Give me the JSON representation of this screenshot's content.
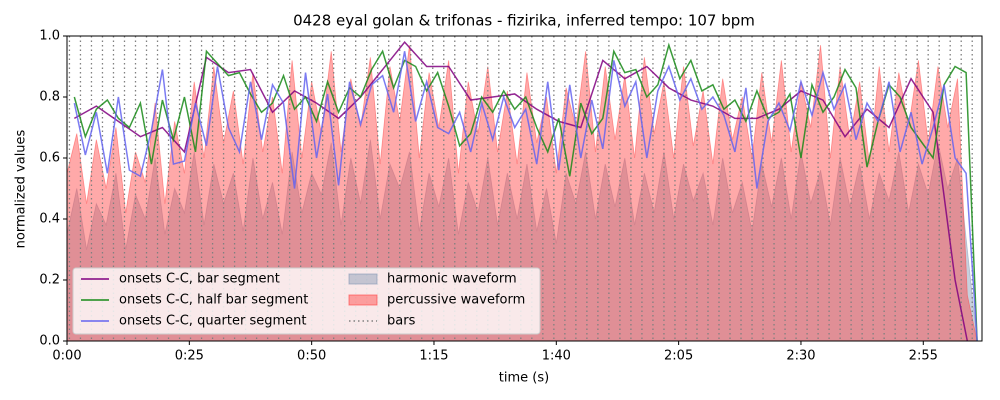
{
  "chart_data": {
    "type": "line",
    "title": "0428 eyal golan & trifonas - fizirika, inferred tempo: 107 bpm",
    "xlabel": "time (s)",
    "ylabel": "normalized values",
    "xlim": [
      0,
      187
    ],
    "ylim": [
      0,
      1
    ],
    "xticks": [
      {
        "value": 0,
        "label": "0:00"
      },
      {
        "value": 25,
        "label": "0:25"
      },
      {
        "value": 50,
        "label": "0:50"
      },
      {
        "value": 75,
        "label": "1:15"
      },
      {
        "value": 100,
        "label": "1:40"
      },
      {
        "value": 125,
        "label": "2:05"
      },
      {
        "value": 150,
        "label": "2:30"
      },
      {
        "value": 175,
        "label": "2:55"
      }
    ],
    "yticks": [
      {
        "value": 0,
        "label": "0.0"
      },
      {
        "value": 0.2,
        "label": "0.2"
      },
      {
        "value": 0.4,
        "label": "0.4"
      },
      {
        "value": 0.6,
        "label": "0.6"
      },
      {
        "value": 0.8,
        "label": "0.8"
      },
      {
        "value": 1,
        "label": "1.0"
      }
    ],
    "legend": "lower left",
    "series": [
      {
        "name": "onsets C-C, bar segment",
        "kind": "line",
        "color": "#800080",
        "x": [
          1.5,
          6,
          10.5,
          15,
          19.5,
          24,
          28.5,
          33,
          37.5,
          42,
          46.5,
          51,
          55.5,
          60,
          64.5,
          69,
          73.5,
          78,
          82.5,
          87,
          91.5,
          96,
          100.5,
          105,
          109.5,
          114,
          118.5,
          123,
          127.5,
          132,
          136.5,
          141,
          145.5,
          150,
          154.5,
          159,
          163.5,
          168,
          172.5,
          177,
          181.5,
          184
        ],
        "values": [
          0.73,
          0.77,
          0.72,
          0.67,
          0.7,
          0.62,
          0.93,
          0.88,
          0.89,
          0.75,
          0.82,
          0.78,
          0.73,
          0.8,
          0.89,
          0.98,
          0.9,
          0.9,
          0.79,
          0.8,
          0.81,
          0.76,
          0.72,
          0.7,
          0.92,
          0.86,
          0.9,
          0.83,
          0.79,
          0.77,
          0.73,
          0.73,
          0.76,
          0.82,
          0.79,
          0.67,
          0.76,
          0.7,
          0.86,
          0.75,
          0.2,
          0
        ]
      },
      {
        "name": "onsets C-C, half bar segment",
        "kind": "line",
        "color": "#178a17",
        "x": [
          1.5,
          3.75,
          6,
          8.25,
          10.5,
          12.75,
          15,
          17.25,
          19.5,
          21.75,
          24,
          26.25,
          28.5,
          30.75,
          33,
          35.25,
          37.5,
          39.75,
          42,
          44.25,
          46.5,
          48.75,
          51,
          53.25,
          55.5,
          57.75,
          60,
          62.25,
          64.5,
          66.75,
          69,
          71.25,
          73.5,
          75.75,
          78,
          80.25,
          82.5,
          84.75,
          87,
          89.25,
          91.5,
          93.75,
          96,
          98.25,
          100.5,
          102.75,
          105,
          107.25,
          109.5,
          111.75,
          114,
          116.25,
          118.5,
          120.75,
          123,
          125.25,
          127.5,
          129.75,
          132,
          134.25,
          136.5,
          138.75,
          141,
          143.25,
          145.5,
          147.75,
          150,
          152.25,
          154.5,
          156.75,
          159,
          161.25,
          163.5,
          165.75,
          168,
          170.25,
          172.5,
          174.75,
          177,
          179.25,
          181.5,
          183.75,
          186
        ],
        "values": [
          0.8,
          0.67,
          0.76,
          0.79,
          0.73,
          0.7,
          0.78,
          0.58,
          0.79,
          0.66,
          0.8,
          0.62,
          0.95,
          0.91,
          0.87,
          0.88,
          0.81,
          0.75,
          0.78,
          0.87,
          0.76,
          0.8,
          0.72,
          0.85,
          0.75,
          0.83,
          0.8,
          0.89,
          0.95,
          0.83,
          0.92,
          0.9,
          0.82,
          0.88,
          0.77,
          0.64,
          0.68,
          0.8,
          0.75,
          0.82,
          0.76,
          0.8,
          0.7,
          0.62,
          0.73,
          0.54,
          0.78,
          0.68,
          0.73,
          0.95,
          0.88,
          0.89,
          0.8,
          0.84,
          0.97,
          0.86,
          0.92,
          0.82,
          0.84,
          0.76,
          0.79,
          0.72,
          0.82,
          0.73,
          0.75,
          0.81,
          0.6,
          0.84,
          0.75,
          0.8,
          0.89,
          0.83,
          0.57,
          0.72,
          0.84,
          0.8,
          0.7,
          0.65,
          0.6,
          0.84,
          0.9,
          0.88,
          0
        ]
      },
      {
        "name": "onsets C-C, quarter segment",
        "kind": "line",
        "color": "#6464f0",
        "x": [
          1.5,
          3.75,
          6,
          8.25,
          10.5,
          12.75,
          15,
          17.25,
          19.5,
          21.75,
          24,
          26.25,
          28.5,
          30.75,
          33,
          35.25,
          37.5,
          39.75,
          42,
          44.25,
          46.5,
          48.75,
          51,
          53.25,
          55.5,
          57.75,
          60,
          62.25,
          64.5,
          66.75,
          69,
          71.25,
          73.5,
          75.75,
          78,
          80.25,
          82.5,
          84.75,
          87,
          89.25,
          91.5,
          93.75,
          96,
          98.25,
          100.5,
          102.75,
          105,
          107.25,
          109.5,
          111.75,
          114,
          116.25,
          118.5,
          120.75,
          123,
          125.25,
          127.5,
          129.75,
          132,
          134.25,
          136.5,
          138.75,
          141,
          143.25,
          145.5,
          147.75,
          150,
          152.25,
          154.5,
          156.75,
          159,
          161.25,
          163.5,
          165.75,
          168,
          170.25,
          172.5,
          174.75,
          177,
          179.25,
          181.5,
          183.75,
          186
        ],
        "values": [
          0.78,
          0.61,
          0.75,
          0.55,
          0.8,
          0.56,
          0.54,
          0.69,
          0.89,
          0.58,
          0.59,
          0.78,
          0.64,
          0.9,
          0.7,
          0.62,
          0.85,
          0.66,
          0.84,
          0.78,
          0.5,
          0.88,
          0.6,
          0.81,
          0.51,
          0.85,
          0.71,
          0.84,
          0.87,
          0.75,
          0.95,
          0.72,
          0.85,
          0.7,
          0.68,
          0.75,
          0.62,
          0.78,
          0.66,
          0.8,
          0.7,
          0.76,
          0.58,
          0.85,
          0.56,
          0.84,
          0.6,
          0.79,
          0.63,
          0.92,
          0.77,
          0.85,
          0.6,
          0.82,
          0.9,
          0.79,
          0.86,
          0.76,
          0.8,
          0.74,
          0.62,
          0.83,
          0.5,
          0.72,
          0.78,
          0.69,
          0.85,
          0.74,
          0.88,
          0.76,
          0.84,
          0.66,
          0.78,
          0.72,
          0.85,
          0.62,
          0.75,
          0.58,
          0.7,
          0.84,
          0.6,
          0.55,
          0
        ]
      },
      {
        "name": "harmonic waveform",
        "kind": "area",
        "color": "#8296b4",
        "x": [
          0,
          2,
          4,
          6,
          8,
          10,
          12,
          14,
          16,
          18,
          20,
          22,
          24,
          26,
          28,
          30,
          32,
          34,
          36,
          38,
          40,
          42,
          44,
          46,
          48,
          50,
          52,
          54,
          56,
          58,
          60,
          62,
          64,
          66,
          68,
          70,
          72,
          74,
          76,
          78,
          80,
          82,
          84,
          86,
          88,
          90,
          92,
          94,
          96,
          98,
          100,
          102,
          104,
          106,
          108,
          110,
          112,
          114,
          116,
          118,
          120,
          122,
          124,
          126,
          128,
          130,
          132,
          134,
          136,
          138,
          140,
          142,
          144,
          146,
          148,
          150,
          152,
          154,
          156,
          158,
          160,
          162,
          164,
          166,
          168,
          170,
          172,
          174,
          176,
          178,
          180,
          182,
          184,
          186
        ],
        "values": [
          0.35,
          0.5,
          0.3,
          0.45,
          0.38,
          0.55,
          0.3,
          0.48,
          0.4,
          0.6,
          0.35,
          0.5,
          0.42,
          0.62,
          0.38,
          0.58,
          0.45,
          0.55,
          0.36,
          0.6,
          0.4,
          0.52,
          0.35,
          0.62,
          0.42,
          0.55,
          0.48,
          0.65,
          0.38,
          0.6,
          0.45,
          0.66,
          0.4,
          0.58,
          0.5,
          0.62,
          0.36,
          0.55,
          0.44,
          0.6,
          0.35,
          0.52,
          0.42,
          0.6,
          0.38,
          0.55,
          0.4,
          0.58,
          0.36,
          0.5,
          0.32,
          0.55,
          0.45,
          0.62,
          0.4,
          0.58,
          0.44,
          0.6,
          0.38,
          0.55,
          0.42,
          0.62,
          0.4,
          0.58,
          0.46,
          0.55,
          0.38,
          0.6,
          0.42,
          0.52,
          0.36,
          0.58,
          0.44,
          0.6,
          0.4,
          0.62,
          0.45,
          0.56,
          0.38,
          0.6,
          0.44,
          0.58,
          0.4,
          0.55,
          0.46,
          0.62,
          0.42,
          0.58,
          0.48,
          0.65,
          0.5,
          0.6,
          0.3,
          0
        ]
      },
      {
        "name": "percussive waveform",
        "kind": "area",
        "color": "#ff4040",
        "x": [
          0,
          2,
          4,
          6,
          8,
          10,
          12,
          14,
          16,
          18,
          20,
          22,
          24,
          26,
          28,
          30,
          32,
          34,
          36,
          38,
          40,
          42,
          44,
          46,
          48,
          50,
          52,
          54,
          56,
          58,
          60,
          62,
          64,
          66,
          68,
          70,
          72,
          74,
          76,
          78,
          80,
          82,
          84,
          86,
          88,
          90,
          92,
          94,
          96,
          98,
          100,
          102,
          104,
          106,
          108,
          110,
          112,
          114,
          116,
          118,
          120,
          122,
          124,
          126,
          128,
          130,
          132,
          134,
          136,
          138,
          140,
          142,
          144,
          146,
          148,
          150,
          152,
          154,
          156,
          158,
          160,
          162,
          164,
          166,
          168,
          170,
          172,
          174,
          176,
          178,
          180,
          182,
          184,
          186
        ],
        "values": [
          0.55,
          0.68,
          0.45,
          0.66,
          0.5,
          0.7,
          0.42,
          0.62,
          0.52,
          0.78,
          0.45,
          0.72,
          0.55,
          0.85,
          0.6,
          0.9,
          0.65,
          0.82,
          0.58,
          0.88,
          0.62,
          0.8,
          0.55,
          0.92,
          0.6,
          0.85,
          0.68,
          0.95,
          0.62,
          0.86,
          0.7,
          0.93,
          0.58,
          0.9,
          0.72,
          0.97,
          0.6,
          0.88,
          0.7,
          0.92,
          0.55,
          0.85,
          0.68,
          0.9,
          0.62,
          0.82,
          0.58,
          0.88,
          0.65,
          0.8,
          0.55,
          0.83,
          0.7,
          0.95,
          0.62,
          0.9,
          0.66,
          0.87,
          0.6,
          0.93,
          0.68,
          0.85,
          0.6,
          0.9,
          0.64,
          0.82,
          0.58,
          0.86,
          0.66,
          0.8,
          0.6,
          0.88,
          0.65,
          0.92,
          0.62,
          0.85,
          0.7,
          0.97,
          0.6,
          0.9,
          0.66,
          0.85,
          0.58,
          0.9,
          0.62,
          0.88,
          0.7,
          0.92,
          0.65,
          0.9,
          0.7,
          0.86,
          0.15,
          0
        ]
      },
      {
        "name": "bars",
        "kind": "vlines",
        "color": "#808080",
        "x": [
          0.5,
          2.75,
          5,
          7.25,
          9.5,
          11.75,
          14,
          16.25,
          18.5,
          20.75,
          23,
          25.25,
          27.5,
          29.75,
          32,
          34.25,
          36.5,
          38.75,
          41,
          43.25,
          45.5,
          47.75,
          50,
          52.25,
          54.5,
          56.75,
          59,
          61.25,
          63.5,
          65.75,
          68,
          70.25,
          72.5,
          74.75,
          77,
          79.25,
          81.5,
          83.75,
          86,
          88.25,
          90.5,
          92.75,
          95,
          97.25,
          99.5,
          101.75,
          104,
          106.25,
          108.5,
          110.75,
          113,
          115.25,
          117.5,
          119.75,
          122,
          124.25,
          126.5,
          128.75,
          131,
          133.25,
          135.5,
          137.75,
          140,
          142.25,
          144.5,
          146.75,
          149,
          151.25,
          153.5,
          155.75,
          158,
          160.25,
          162.5,
          164.75,
          167,
          169.25,
          171.5,
          173.75,
          176,
          178.25,
          180.5,
          182.75,
          185
        ]
      }
    ]
  }
}
